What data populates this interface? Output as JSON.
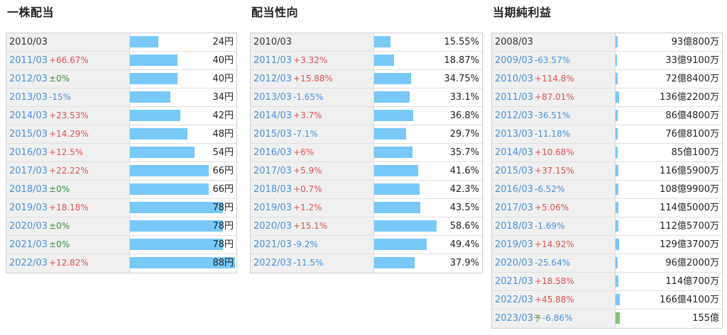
{
  "colors": {
    "bar": "#78c8f8",
    "bar_forecast": "#7cc47c",
    "increase": "#d9534f",
    "decrease": "#4a90d9",
    "flat": "#3d8b3d",
    "label_bg": "#f0f0f0"
  },
  "panels": [
    {
      "title": "一株配当",
      "rows": [
        {
          "year": "2010/03",
          "change": "",
          "dir": "",
          "value": "24円",
          "num": 24
        },
        {
          "year": "2011/03",
          "change": "+66.67%",
          "dir": "up",
          "value": "40円",
          "num": 40
        },
        {
          "year": "2012/03",
          "change": "±0%",
          "dir": "flat",
          "value": "40円",
          "num": 40
        },
        {
          "year": "2013/03",
          "change": "-15%",
          "dir": "down",
          "value": "34円",
          "num": 34
        },
        {
          "year": "2014/03",
          "change": "+23.53%",
          "dir": "up",
          "value": "42円",
          "num": 42
        },
        {
          "year": "2015/03",
          "change": "+14.29%",
          "dir": "up",
          "value": "48円",
          "num": 48
        },
        {
          "year": "2016/03",
          "change": "+12.5%",
          "dir": "up",
          "value": "54円",
          "num": 54
        },
        {
          "year": "2017/03",
          "change": "+22.22%",
          "dir": "up",
          "value": "66円",
          "num": 66
        },
        {
          "year": "2018/03",
          "change": "±0%",
          "dir": "flat",
          "value": "66円",
          "num": 66
        },
        {
          "year": "2019/03",
          "change": "+18.18%",
          "dir": "up",
          "value": "78円",
          "num": 78
        },
        {
          "year": "2020/03",
          "change": "±0%",
          "dir": "flat",
          "value": "78円",
          "num": 78
        },
        {
          "year": "2021/03",
          "change": "±0%",
          "dir": "flat",
          "value": "78円",
          "num": 78
        },
        {
          "year": "2022/03",
          "change": "+12.82%",
          "dir": "up",
          "value": "88円",
          "num": 88
        }
      ]
    },
    {
      "title": "配当性向",
      "rows": [
        {
          "year": "2010/03",
          "change": "",
          "dir": "",
          "value": "15.55%",
          "num": 15.55
        },
        {
          "year": "2011/03",
          "change": "+3.32%",
          "dir": "up",
          "value": "18.87%",
          "num": 18.87
        },
        {
          "year": "2012/03",
          "change": "+15.88%",
          "dir": "up",
          "value": "34.75%",
          "num": 34.75
        },
        {
          "year": "2013/03",
          "change": "-1.65%",
          "dir": "down",
          "value": "33.1%",
          "num": 33.1
        },
        {
          "year": "2014/03",
          "change": "+3.7%",
          "dir": "up",
          "value": "36.8%",
          "num": 36.8
        },
        {
          "year": "2015/03",
          "change": "-7.1%",
          "dir": "down",
          "value": "29.7%",
          "num": 29.7
        },
        {
          "year": "2016/03",
          "change": "+6%",
          "dir": "up",
          "value": "35.7%",
          "num": 35.7
        },
        {
          "year": "2017/03",
          "change": "+5.9%",
          "dir": "up",
          "value": "41.6%",
          "num": 41.6
        },
        {
          "year": "2018/03",
          "change": "+0.7%",
          "dir": "up",
          "value": "42.3%",
          "num": 42.3
        },
        {
          "year": "2019/03",
          "change": "+1.2%",
          "dir": "up",
          "value": "43.5%",
          "num": 43.5
        },
        {
          "year": "2020/03",
          "change": "+15.1%",
          "dir": "up",
          "value": "58.6%",
          "num": 58.6
        },
        {
          "year": "2021/03",
          "change": "-9.2%",
          "dir": "down",
          "value": "49.4%",
          "num": 49.4
        },
        {
          "year": "2022/03",
          "change": "-11.5%",
          "dir": "down",
          "value": "37.9%",
          "num": 37.9
        }
      ]
    },
    {
      "title": "当期純利益",
      "rows": [
        {
          "year": "2008/03",
          "change": "",
          "dir": "",
          "value": "93億800万",
          "num": 93.08
        },
        {
          "year": "2009/03",
          "change": "-63.57%",
          "dir": "down",
          "value": "33億9100万",
          "num": 33.91
        },
        {
          "year": "2010/03",
          "change": "+114.8%",
          "dir": "up",
          "value": "72億8400万",
          "num": 72.84
        },
        {
          "year": "2011/03",
          "change": "+87.01%",
          "dir": "up",
          "value": "136億2200万",
          "num": 136.22
        },
        {
          "year": "2012/03",
          "change": "-36.51%",
          "dir": "down",
          "value": "86億4800万",
          "num": 86.48
        },
        {
          "year": "2013/03",
          "change": "-11.18%",
          "dir": "down",
          "value": "76億8100万",
          "num": 76.81
        },
        {
          "year": "2014/03",
          "change": "+10.68%",
          "dir": "up",
          "value": "85億100万",
          "num": 85.01
        },
        {
          "year": "2015/03",
          "change": "+37.15%",
          "dir": "up",
          "value": "116億5900万",
          "num": 116.59
        },
        {
          "year": "2016/03",
          "change": "-6.52%",
          "dir": "down",
          "value": "108億9900万",
          "num": 108.99
        },
        {
          "year": "2017/03",
          "change": "+5.06%",
          "dir": "up",
          "value": "114億5000万",
          "num": 114.5
        },
        {
          "year": "2018/03",
          "change": "-1.69%",
          "dir": "down",
          "value": "112億5700万",
          "num": 112.57
        },
        {
          "year": "2019/03",
          "change": "+14.92%",
          "dir": "up",
          "value": "129億3700万",
          "num": 129.37
        },
        {
          "year": "2020/03",
          "change": "-25.64%",
          "dir": "down",
          "value": "96億2000万",
          "num": 96.2
        },
        {
          "year": "2021/03",
          "change": "+18.58%",
          "dir": "up",
          "value": "114億700万",
          "num": 114.07
        },
        {
          "year": "2022/03",
          "change": "+45.88%",
          "dir": "up",
          "value": "166億4100万",
          "num": 166.41
        },
        {
          "year": "2023/03",
          "forecast": "予",
          "change": "-6.86%",
          "dir": "down",
          "value": "155億",
          "num": 155
        }
      ]
    }
  ]
}
